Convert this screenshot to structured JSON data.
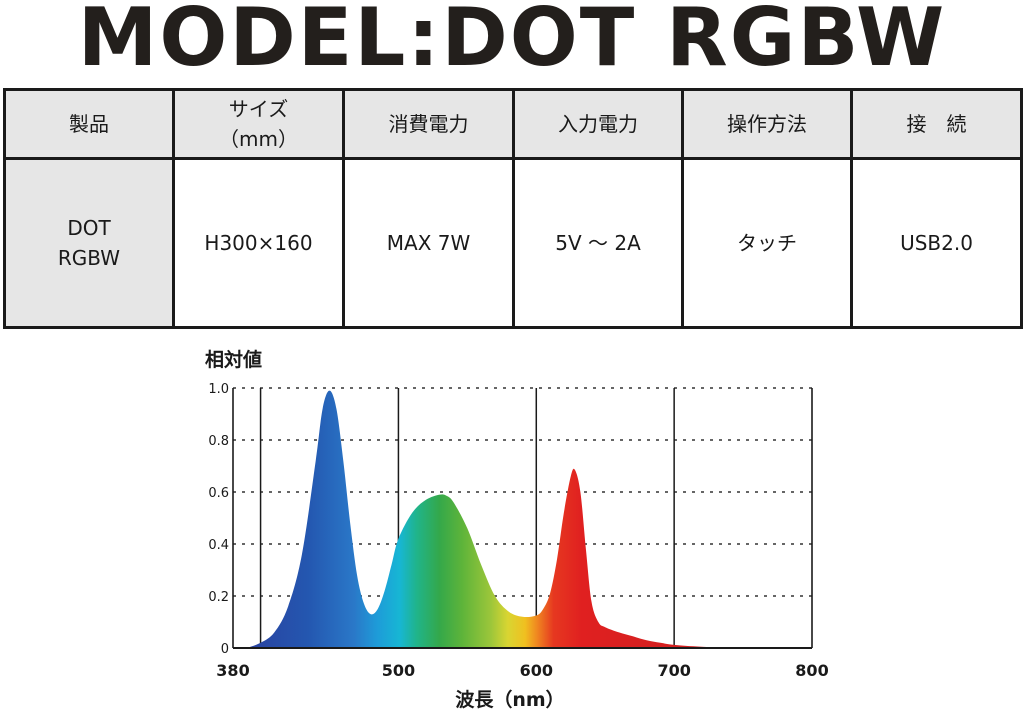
{
  "page": {
    "title": "MODEL:DOT RGBW"
  },
  "spec_table": {
    "headers": [
      "製品",
      "サイズ\n（mm）",
      "消費電力",
      "入力電力",
      "操作方法",
      "接　続"
    ],
    "values": [
      "DOT\nRGBW",
      "H300×160",
      "MAX 7W",
      "5V ～ 2A",
      "タッチ",
      "USB2.0"
    ]
  },
  "chart_data": {
    "type": "area",
    "title": "",
    "ylabel": "相対値",
    "xlabel": "波長（nm）",
    "xlim": [
      380,
      800
    ],
    "ylim": [
      0,
      1.0
    ],
    "x_ticks": [
      "380",
      "500",
      "600",
      "700",
      "800"
    ],
    "y_ticks": [
      "1.0",
      "0.8",
      "0.6",
      "0.4",
      "0.2",
      "0"
    ],
    "grid": "horizontal dotted at each 0.2, vertical solid at 400, 500, 600, 700",
    "fill": "spectral gradient (blue to red)",
    "series": [
      {
        "x": [
          390,
          400,
          410,
          420,
          430,
          440,
          445,
          450,
          455,
          460,
          465,
          470,
          475,
          480,
          485,
          490,
          495,
          500,
          510,
          520,
          530,
          535,
          540,
          550,
          560,
          570,
          580,
          590,
          600,
          605,
          610,
          615,
          620,
          625,
          628,
          632,
          636,
          640,
          645,
          650,
          660,
          670,
          680,
          690,
          700,
          720,
          750
        ],
        "values": [
          0.0,
          0.02,
          0.06,
          0.16,
          0.36,
          0.72,
          0.92,
          0.99,
          0.92,
          0.72,
          0.48,
          0.28,
          0.17,
          0.13,
          0.15,
          0.22,
          0.32,
          0.42,
          0.52,
          0.57,
          0.59,
          0.585,
          0.56,
          0.46,
          0.32,
          0.2,
          0.14,
          0.12,
          0.125,
          0.15,
          0.21,
          0.34,
          0.52,
          0.66,
          0.685,
          0.6,
          0.38,
          0.18,
          0.1,
          0.08,
          0.06,
          0.045,
          0.03,
          0.02,
          0.012,
          0.005,
          0.0
        ]
      }
    ]
  }
}
